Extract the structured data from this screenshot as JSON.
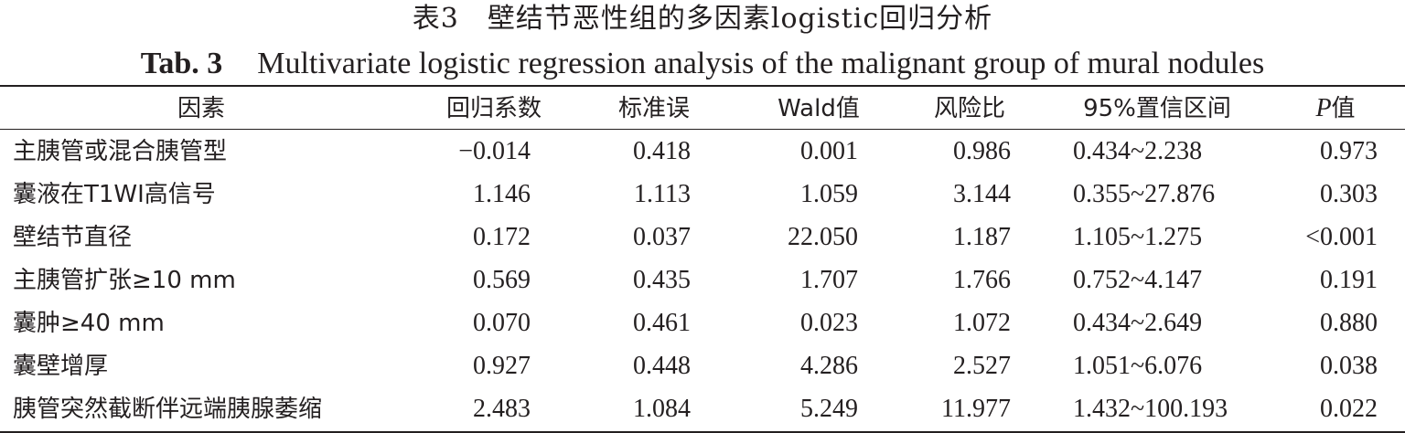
{
  "title": {
    "cn": "表3　壁结节恶性组的多因素logistic回归分析",
    "en_label": "Tab. 3",
    "en_text": "Multivariate logistic regression analysis of the malignant group of mural nodules"
  },
  "table": {
    "headers": {
      "factor": "因素",
      "coef": "回归系数",
      "se": "标准误",
      "wald": "Wald值",
      "or": "风险比",
      "ci": "95%置信区间",
      "p_letter": "P",
      "p_suffix": "值"
    },
    "rows": [
      {
        "factor": "主胰管或混合胰管型",
        "coef": "−0.014",
        "se": "0.418",
        "wald": "0.001",
        "or": "0.986",
        "ci": "0.434~2.238",
        "p": "0.973"
      },
      {
        "factor": "囊液在T1WI高信号",
        "coef": "1.146",
        "se": "1.113",
        "wald": "1.059",
        "or": "3.144",
        "ci": "0.355~27.876",
        "p": "0.303"
      },
      {
        "factor": "壁结节直径",
        "coef": "0.172",
        "se": "0.037",
        "wald": "22.050",
        "or": "1.187",
        "ci": "1.105~1.275",
        "p": "<0.001"
      },
      {
        "factor": "主胰管扩张≥10 mm",
        "coef": "0.569",
        "se": "0.435",
        "wald": "1.707",
        "or": "1.766",
        "ci": "0.752~4.147",
        "p": "0.191"
      },
      {
        "factor": "囊肿≥40 mm",
        "coef": "0.070",
        "se": "0.461",
        "wald": "0.023",
        "or": "1.072",
        "ci": "0.434~2.649",
        "p": "0.880"
      },
      {
        "factor": "囊壁增厚",
        "coef": "0.927",
        "se": "0.448",
        "wald": "4.286",
        "or": "2.527",
        "ci": "1.051~6.076",
        "p": "0.038"
      },
      {
        "factor": "胰管突然截断伴远端胰腺萎缩",
        "coef": "2.483",
        "se": "1.084",
        "wald": "5.249",
        "or": "11.977",
        "ci": "1.432~100.193",
        "p": "0.022"
      }
    ]
  }
}
